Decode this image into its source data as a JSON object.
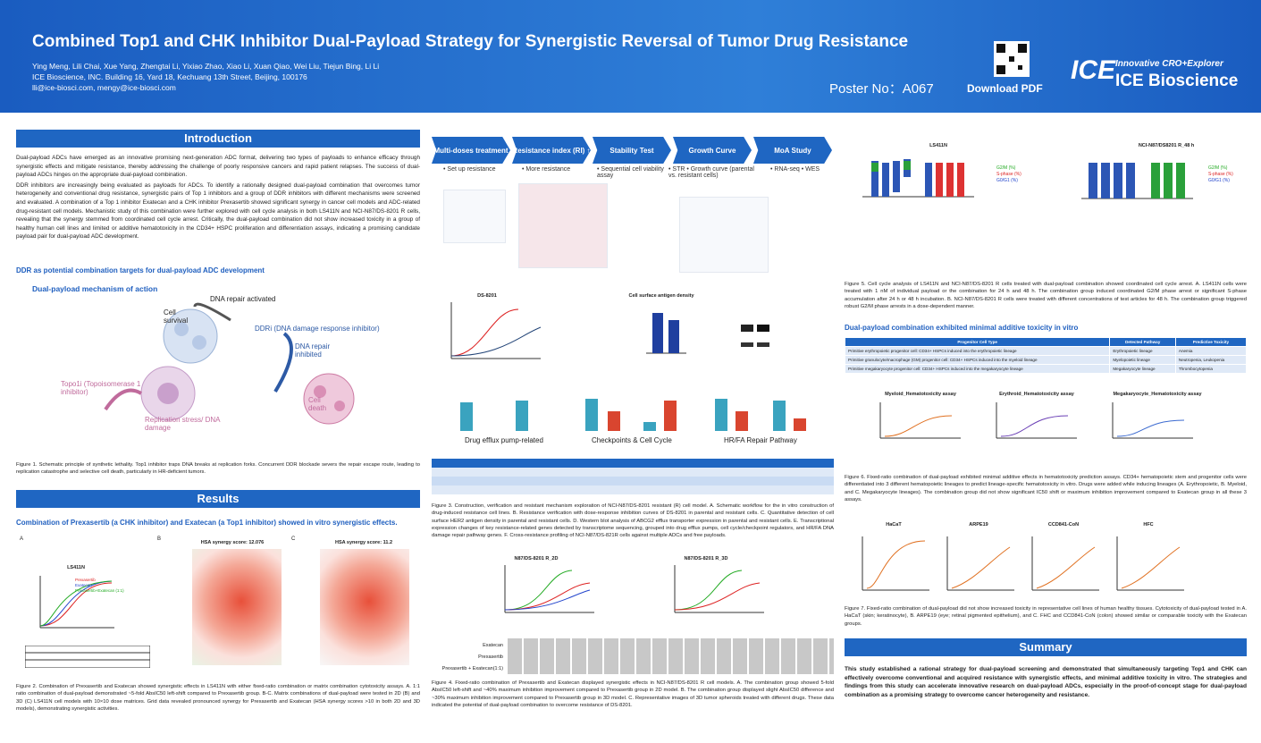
{
  "header": {
    "title": "Combined Top1 and CHK Inhibitor Dual-Payload Strategy for Synergistic Reversal of Tumor Drug Resistance",
    "authors": "Ying Meng, Lili Chai, Xue Yang, Zhengtai Li, Yixiao Zhao, Xiao Li, Xuan Qiao, Wei Liu, Tiejun Bing, Li Li",
    "affiliation": "ICE Bioscience, INC. Building 16, Yard 18, Kechuang 13th Street, Beijing, 100176",
    "emails": "lli@ice-biosci.com, mengy@ice-biosci.com",
    "poster_no": "Poster No：A067",
    "download": "Download PDF",
    "logo_tagline": "Innovative CRO+Explorer",
    "logo_name": "ICE Bioscience"
  },
  "introduction": {
    "heading": "Introduction",
    "paragraphs": [
      "Dual-payload ADCs have emerged as an innovative promising next-generation ADC format, delivering two types of payloads to enhance efficacy through synergistic effects and mitigate resistance, thereby addressing the challenge of poorly responsive cancers and rapid patient relapses. The success of dual-payload ADCs hinges on the appropriate dual-payload combination.",
      "DDR inhibitors are increasingly being evaluated as payloads for ADCs. To identify a rationally designed dual-payload combination that overcomes tumor heterogeneity and conventional drug resistance, synergistic pairs of Top 1 inhibitors and a group of DDR inhibitors with different mechanisms were screened and evaluated. A combination of a Top 1 inhibitor Exatecan and a CHK inhibitor Prexasertib showed significant synergy in cancer cell models and ADC-related drug-resistant cell models. Mechanistic study of this combination were further explored with cell cycle analysis in both LS411N and NCI-N87/DS-8201 R cells, revealing that the synergy stemmed from coordinated cell cycle arrest. Critically, the dual-payload combination did not show increased toxicity in a group of healthy human cell lines and limited or additive hematotoxicity in the CD34+ HSPC proliferation and differentiation assays, indicating a promising candidate payload pair for dual-payload ADC development."
    ],
    "subheading": "DDR as potential combination targets for dual-payload ADC development",
    "diagram": {
      "title": "Dual-payload mechanism of action",
      "labels": [
        "DNA repair activated",
        "Cell survival",
        "DDRi (DNA damage response inhibitor)",
        "DNA repair inhibited",
        "Topo1i (Topoisomerase 1 inhibitor)",
        "Cell death",
        "Replication stress/ DNA damage"
      ]
    },
    "caption": "Figure 1. Schematic principle of synthetic lethality. Top1 inhibitor traps DNA breaks at replication forks. Concurrent DDR blockade severs the repair escape route, leading to replication catastrophe and selective cell death, particularly in HR-deficient tumors."
  },
  "results": {
    "heading": "Results",
    "subheading": "Combination of Prexasertib (a CHK inhibitor) and Exatecan (a Top1 inhibitor) showed in vitro synergistic effects.",
    "figure2": {
      "panels": [
        "A",
        "B",
        "C"
      ],
      "chart_title": "LS411N",
      "legend": [
        "Prexasertib",
        "Exatecan",
        "Prexasertib+Exatecan (1:1)"
      ],
      "synergy_titles": [
        "HSA synergy score: 12.076",
        "HSA synergy score: 11.2"
      ]
    },
    "caption": "Figure 2. Combination of Prexasertib and Exatecan showed synergistic effects in LS411N with either fixed-ratio combination or matrix combination cytotoxicity assays. A. 1:1 ratio combination of dual-payload demonstrated ~5-fold AbsIC50 left-shift compared to Prexasertib group. B-C. Matrix combinations of dual-payload were tested in 2D (B) and 3D (C) LS411N cell models with 10×10 dose matrices. Grid data revealed pronounced synergy for Prexasertib and Exatecan (HSA synergy scores >10 in both 2D and 3D models), demonstrating synergistic activities."
  },
  "figure3": {
    "workflow": [
      {
        "step": "Multi-doses treatment",
        "item": "• Set up resistance"
      },
      {
        "step": "Resistance index (RI) ↑",
        "item": "• More resistance"
      },
      {
        "step": "Stability Test",
        "item": "• Sequential cell viability assay"
      },
      {
        "step": "Growth Curve",
        "item": "• STR • Growth curve (parental vs. resistant cells)"
      },
      {
        "step": "MoA Study",
        "item": "• RNA-seq • WES"
      }
    ],
    "chart_titles": [
      "DS-8201",
      "Cell surface antigen density",
      "Drug efflux pump-related",
      "Checkpoints & Cell Cycle",
      "HR/FA Repair Pathway"
    ],
    "caption": "Figure 3. Construction, verification and resistant mechanism exploration of NCI-N87/DS-8201 resistant (R) cell model. A. Schematic workflow for the in vitro construction of drug-induced resistance cell lines. B. Resistance verification with dose-response inhibition curves of DS-8201 in parental and resistant cells. C. Quantitative detection of cell surface HER2 antigen density in parental and resistant cells. D. Western blot analysis of ABCG2 efflux transporter expression in parental and resistant cells. E. Transcriptional expression changes of key resistance-related genes detected by transcriptome sequencing, grouped into drug efflux pumps, cell cycle/checkpoint regulators, and HR/FA DNA damage repair pathway genes. F. Cross-resistance profiling of NCI-N87/DS-821R cells against multiple ADCs and free payloads."
  },
  "figure4": {
    "chart_titles": [
      "N87/DS-8201 R_2D",
      "N87/DS-8201 R_3D"
    ],
    "rows": [
      "Exatecan",
      "Prexasertib",
      "Prexasertib + Exatecan(1:1)"
    ],
    "caption": "Figure 4. Fixed-ratio combination of Prexasertib and Exatecan displayed synergistic effects in NCI-N87/DS-8201 R cell models. A. The combination group showed 5-fold AbsIC50 left-shift and ~40% maximum inhibition improvement compared to Prexasertib group in 2D model. B. The combination group displayed slight AbsIC50 difference and ~30% maximum inhibition improvement compared to Prexasertib group in 3D model. C. Representative images of 3D tumor spheroids treated with different drugs. These data indicated the potential of dual-payload combination to overcome resistance of DS-8201."
  },
  "figure5": {
    "chart_titles": [
      "LS411N",
      "NCI-N87/DS8201 R_48 h"
    ],
    "legend": [
      "G2/M (%)",
      "S-phase (%)",
      "G0/G1 (%)"
    ],
    "caption": "Figure 5. Cell cycle analysis of LS411N and NCI-N87/DS-8201 R cells treated with dual-payload combination showed coordinated cell cycle arrest. A. LS411N cells were treated with 1 nM of individual payload or the combination for 24 h and 48 h. The combination group induced coordinated G2/M phase arrest or significant S-phase accumulation after 24 h or 48 h incubation. B. NCI-N87/DS-8201 R cells were treated with different concentrations of test articles for 48 h. The combination group triggered robust G2/M phase arrests in a dose-dependent manner."
  },
  "hematotoxicity": {
    "subheading": "Dual-payload combination exhibited minimal additive toxicity in vitro",
    "table": {
      "header": [
        "Progenitor Cell Type",
        "Detected Pathway",
        "Predictive Toxicity"
      ],
      "rows": [
        [
          "Primitive erythropoietic progenitor cell: CD34+ HSPCs induced into the erythropoietic lineage",
          "Erythropoietic lineage",
          "Anemia"
        ],
        [
          "Primitive granulocyte/macrophage (GM) progenitor cell: CD34+ HSPCs induced into the myeloid lineage",
          "Myelopoietic lineage",
          "Neutropenia, Leukopenia"
        ],
        [
          "Primitive megakaryocyte progenitor cell: CD34+ HSPCs induced into the megakaryocyte lineage",
          "Megakaryocyte lineage",
          "Thrombocytopenia"
        ]
      ]
    },
    "chart_titles": [
      "Myeloid_Hematotoxicity assay",
      "Erythroid_Hematotoxicity assay",
      "Megakaryocyte_Hematotoxicity assay"
    ],
    "caption": "Figure 6. Fixed-ratio combination of dual-payload exhibited minimal additive effects in hematotoxicity prediction assays. CD34+ hematopoietic stem and progenitor cells were differentiated into 3 different hematopoietic lineages to predict lineage-specific hematotoxicity in vitro. Drugs were added while inducing lineages (A. Erythropoietic, B. Myeloid, and C. Megakaryocyte lineages). The combination group did not show significant IC50 shift or maximum inhibition improvement compared to Exatecan group in all these 3 assays."
  },
  "figure7": {
    "chart_titles": [
      "HaCaT",
      "ARPE19",
      "CCD841-CoN",
      "HFC"
    ],
    "caption": "Figure 7. Fixed-ratio combination of dual-payload did not show increased toxicity in representative cell lines of human healthy tissues. Cytotoxicity of dual-payload tested in A. HaCaT (skin; keratinocyte), B. ARPE19 (eye; retinal pigmented epithelium), and C. FHC and CCD841-CoN (colon) showed similar or comparable toxicity with the Exatecan groups."
  },
  "summary": {
    "heading": "Summary",
    "text": "This study established a rational strategy for dual-payload screening and demonstrated that simultaneously targeting Top1 and CHK can effectively overcome conventional and acquired resistance with synergistic effects, and minimal additive toxicity in vitro. The strategies and findings from this study can accelerate innovative research on dual-payload ADCs, especially in the proof-of-concept stage for dual-payload combination as a promising strategy to overcome cancer heterogeneity and resistance."
  }
}
